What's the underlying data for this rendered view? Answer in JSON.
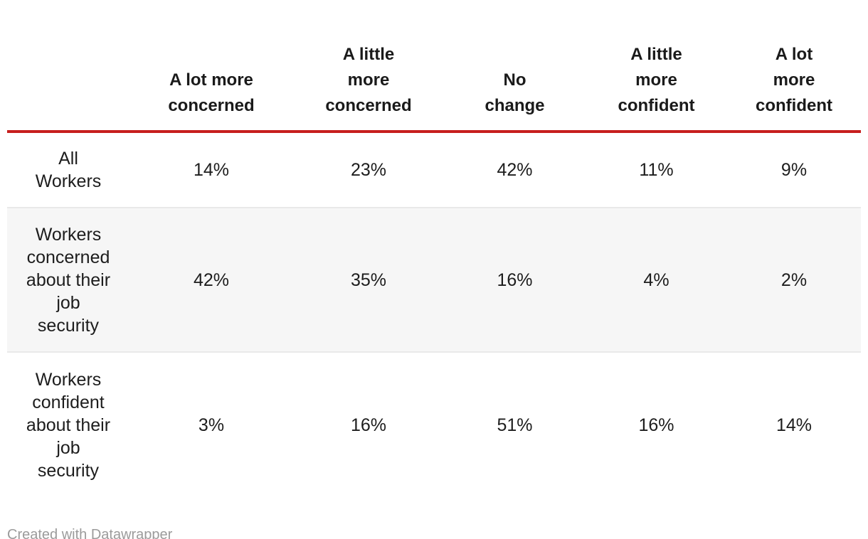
{
  "chart_data": {
    "type": "table",
    "title": "",
    "columns": [
      "A lot more concerned",
      "A little more concerned",
      "No change",
      "A little more confident",
      "A lot more confident"
    ],
    "row_labels": [
      "All Workers",
      "Workers concerned about their job security",
      "Workers confident about their job security"
    ],
    "values_pct": [
      [
        14,
        23,
        42,
        11,
        9
      ],
      [
        42,
        35,
        16,
        4,
        2
      ],
      [
        3,
        16,
        51,
        16,
        14
      ]
    ]
  },
  "table": {
    "corner": "",
    "columns": [
      "A lot more\nconcerned",
      "A little\nmore\nconcerned",
      "No\nchange",
      "A little\nmore\nconfident",
      "A lot\nmore\nconfident"
    ],
    "rows": [
      {
        "label": "All\nWorkers",
        "values": [
          "14%",
          "23%",
          "42%",
          "11%",
          "9%"
        ]
      },
      {
        "label": "Workers\nconcerned\nabout their\njob\nsecurity",
        "values": [
          "42%",
          "35%",
          "16%",
          "4%",
          "2%"
        ]
      },
      {
        "label": "Workers\nconfident\nabout their\njob\nsecurity",
        "values": [
          "3%",
          "16%",
          "51%",
          "16%",
          "14%"
        ]
      }
    ]
  },
  "footer": {
    "credit": "Created with Datawrapper"
  },
  "colors": {
    "accent_rule": "#c71e1d",
    "alt_row_bg": "#f6f6f6",
    "row_separator": "#e9e9e9",
    "header_text": "#1a1a1a",
    "body_text": "#1d1d1d",
    "footer_text": "#9b9b9b",
    "background": "#ffffff"
  }
}
